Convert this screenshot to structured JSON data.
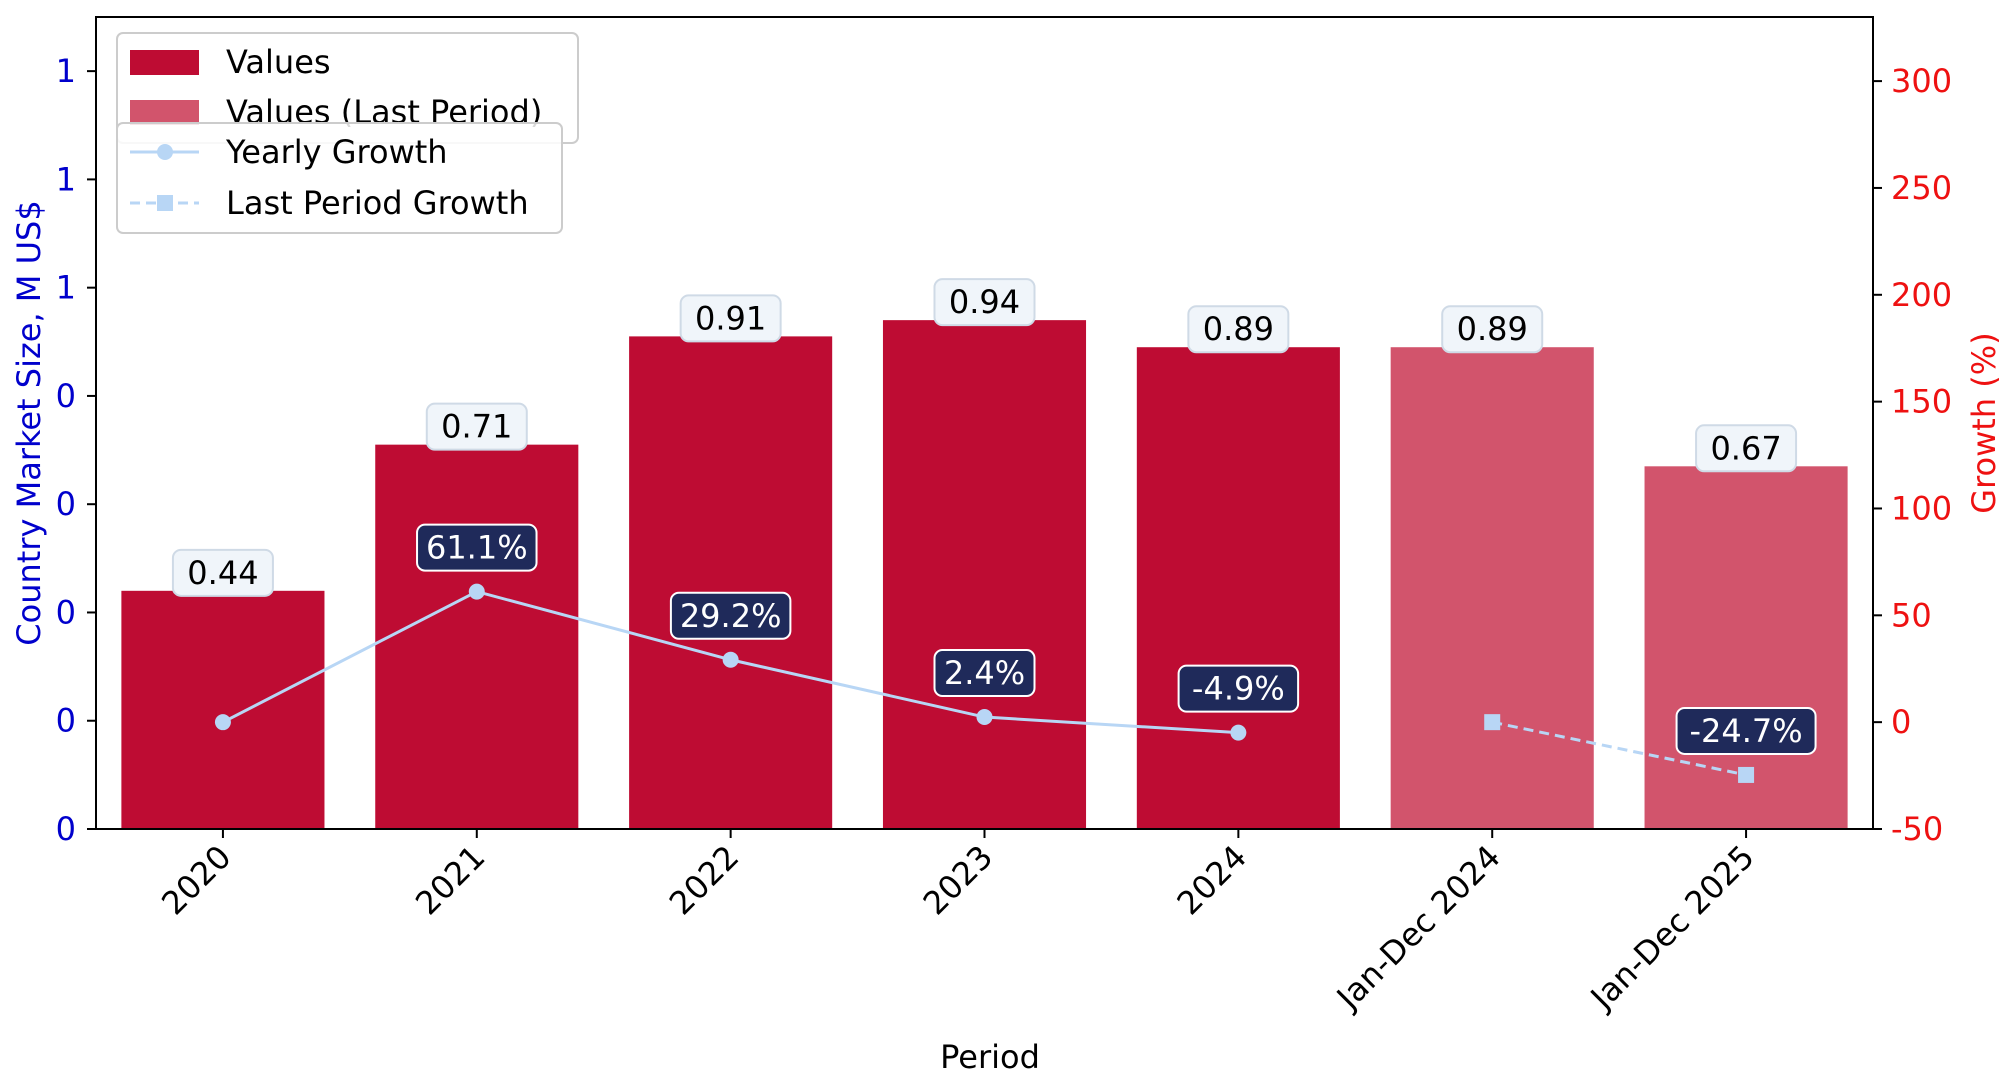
{
  "chart_data": {
    "type": "bar",
    "categories": [
      "2020",
      "2021",
      "2022",
      "2023",
      "2024",
      "Jan-Dec 2024",
      "Jan-Dec 2025"
    ],
    "series": [
      {
        "name": "Values",
        "kind": "bar",
        "axis": "left",
        "color": "#BE0C33",
        "points": [
          {
            "category": "2020",
            "value": 0.44,
            "label": "0.44"
          },
          {
            "category": "2021",
            "value": 0.71,
            "label": "0.71"
          },
          {
            "category": "2022",
            "value": 0.91,
            "label": "0.91"
          },
          {
            "category": "2023",
            "value": 0.94,
            "label": "0.94"
          },
          {
            "category": "2024",
            "value": 0.89,
            "label": "0.89"
          }
        ]
      },
      {
        "name": "Values (Last Period)",
        "kind": "bar",
        "axis": "left",
        "color": "#D2546C",
        "points": [
          {
            "category": "Jan-Dec 2024",
            "value": 0.89,
            "label": "0.89"
          },
          {
            "category": "Jan-Dec 2025",
            "value": 0.67,
            "label": "0.67"
          }
        ]
      },
      {
        "name": "Yearly Growth",
        "kind": "line",
        "axis": "right",
        "color": "#B8D6F5",
        "marker": "circle",
        "linestyle": "solid",
        "points": [
          {
            "category": "2020",
            "value": 0,
            "label": ""
          },
          {
            "category": "2021",
            "value": 61.1,
            "label": "61.1%"
          },
          {
            "category": "2022",
            "value": 29.2,
            "label": "29.2%"
          },
          {
            "category": "2023",
            "value": 2.4,
            "label": "2.4%"
          },
          {
            "category": "2024",
            "value": -4.9,
            "label": "-4.9%"
          }
        ]
      },
      {
        "name": "Last Period Growth",
        "kind": "line",
        "axis": "right",
        "color": "#B8D6F5",
        "marker": "square",
        "linestyle": "dashed",
        "points": [
          {
            "category": "Jan-Dec 2024",
            "value": 0,
            "label": ""
          },
          {
            "category": "Jan-Dec 2025",
            "value": -24.7,
            "label": "-24.7%"
          }
        ]
      }
    ],
    "xlabel": "Period",
    "ylabel": "Country Market Size, M US$",
    "y2label": "Growth (%)",
    "ylim": [
      0,
      1.5
    ],
    "y2lim": [
      -50,
      330
    ],
    "yticks": [
      {
        "value": 0.0,
        "label": "0"
      },
      {
        "value": 0.2,
        "label": "0"
      },
      {
        "value": 0.4,
        "label": "0"
      },
      {
        "value": 0.6,
        "label": "0"
      },
      {
        "value": 0.8,
        "label": "0"
      },
      {
        "value": 1.0,
        "label": "1"
      },
      {
        "value": 1.2,
        "label": "1"
      },
      {
        "value": 1.4,
        "label": "1"
      }
    ],
    "y2ticks": [
      -50,
      0,
      50,
      100,
      150,
      200,
      250,
      300
    ],
    "grid": false,
    "legend": [
      {
        "placement": "top-left",
        "entries": [
          "Values",
          "Values (Last Period)"
        ]
      },
      {
        "placement": "top-left",
        "entries": [
          "Yearly Growth",
          "Last Period Growth"
        ]
      }
    ],
    "colors": {
      "left_axis": "#0000CC",
      "right_axis": "#EE1111",
      "growth_label_bg": "#1F2A5A",
      "value_label_bg": "#F0F5FA"
    }
  }
}
